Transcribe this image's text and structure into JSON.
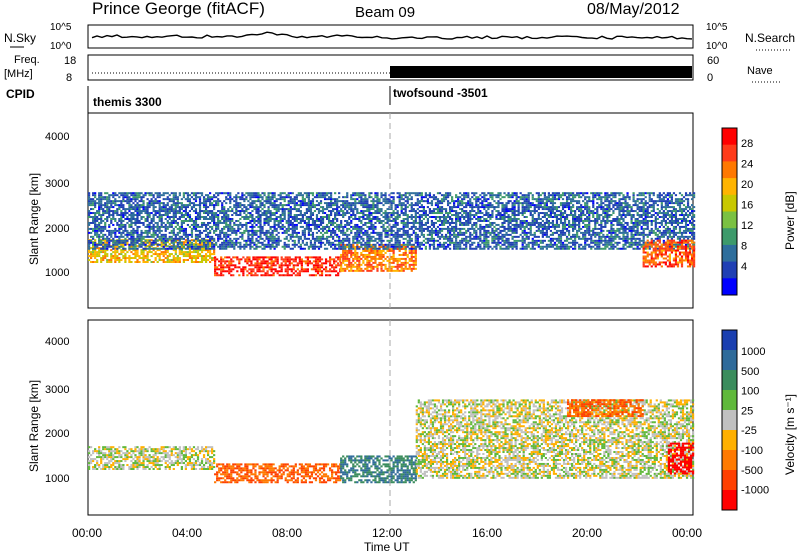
{
  "header": {
    "station": "Prince George (fitACF)",
    "beam": "Beam 09",
    "date": "08/May/2012"
  },
  "top_panels": {
    "nsky_label": "N.Sky",
    "nsky_ticks": [
      "10^5",
      "10^0"
    ],
    "nsearch_label": "N.Search",
    "nsearch_ticks": [
      "10^5",
      "10^0"
    ],
    "freq_label_1": "Freq.",
    "freq_label_2": "[MHz]",
    "freq_ticks": [
      "18",
      "8"
    ],
    "nave_label": "Nave",
    "nave_ticks": [
      "60",
      "0"
    ],
    "cpid_label": "CPID",
    "cpid_segments": [
      {
        "name": "themis 3300",
        "start_hour": 0,
        "end_hour": 12
      },
      {
        "name": "twofsound -3501",
        "start_hour": 12,
        "end_hour": 24
      }
    ]
  },
  "axes": {
    "x_label": "Time UT",
    "x_ticks": [
      "00:00",
      "04:00",
      "08:00",
      "12:00",
      "16:00",
      "20:00",
      "00:00"
    ],
    "y_label": "Slant Range [km]",
    "y_ticks": [
      "4000",
      "3000",
      "2000",
      "1000"
    ]
  },
  "power_scale": {
    "label": "Power [dB]",
    "ticks": [
      "28",
      "24",
      "20",
      "16",
      "12",
      "8",
      "4"
    ],
    "colors": [
      "#ff0000",
      "#ff3b1a",
      "#ff7800",
      "#ffb400",
      "#c8c800",
      "#7ac142",
      "#3d9a6b",
      "#2e6e9c",
      "#1f3fb4",
      "#0000ff"
    ]
  },
  "velocity_scale": {
    "label": "Velocity [m s⁻¹]",
    "ticks": [
      "1000",
      "500",
      "100",
      "25",
      "-25",
      "-100",
      "-500",
      "-1000"
    ],
    "colors": [
      "#1a3fb0",
      "#2f6b9a",
      "#3a8c5c",
      "#5fb83a",
      "#c0c0c0",
      "#ffb000",
      "#ff7a00",
      "#ff4000",
      "#ff0000"
    ]
  },
  "chart_data": [
    {
      "type": "heatmap",
      "title": "Power",
      "xlabel": "Time UT",
      "ylabel": "Slant Range [km]",
      "xlim": [
        0,
        24
      ],
      "ylim": [
        180,
        4600
      ],
      "colorbar": "Power [dB]",
      "bands": [
        {
          "start_hour": 0,
          "end_hour": 5,
          "range_km": [
            1200,
            1700
          ],
          "power_db": 20
        },
        {
          "start_hour": 5,
          "end_hour": 10,
          "range_km": [
            900,
            1350
          ],
          "power_db": 28
        },
        {
          "start_hour": 10,
          "end_hour": 13,
          "range_km": [
            1000,
            1600
          ],
          "power_db": 24
        },
        {
          "start_hour": 0,
          "end_hour": 24,
          "range_km": [
            1500,
            2800
          ],
          "power_db": 8
        },
        {
          "start_hour": 22,
          "end_hour": 24,
          "range_km": [
            1100,
            1700
          ],
          "power_db": 26
        }
      ]
    },
    {
      "type": "heatmap",
      "title": "Velocity",
      "xlabel": "Time UT",
      "ylabel": "Slant Range [km]",
      "xlim": [
        0,
        24
      ],
      "ylim": [
        180,
        4600
      ],
      "colorbar": "Velocity [m s⁻¹]",
      "bands": [
        {
          "start_hour": 0,
          "end_hour": 5,
          "range_km": [
            1200,
            1700
          ],
          "velocity": 0
        },
        {
          "start_hour": 5,
          "end_hour": 10,
          "range_km": [
            900,
            1350
          ],
          "velocity": -300
        },
        {
          "start_hour": 10,
          "end_hour": 13,
          "range_km": [
            900,
            1500
          ],
          "velocity": 300
        },
        {
          "start_hour": 13,
          "end_hour": 24,
          "range_km": [
            1000,
            2800
          ],
          "velocity": 0
        },
        {
          "start_hour": 19,
          "end_hour": 22,
          "range_km": [
            2400,
            2800
          ],
          "velocity": -300
        },
        {
          "start_hour": 23,
          "end_hour": 24,
          "range_km": [
            1100,
            1800
          ],
          "velocity": -1000
        }
      ]
    }
  ]
}
